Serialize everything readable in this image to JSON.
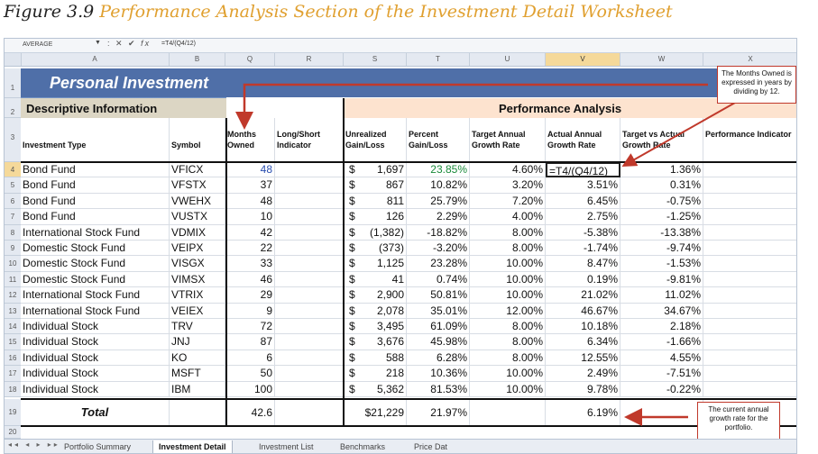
{
  "caption": {
    "figure": "Figure 3.9",
    "title": "Performance Analysis Section of the Investment Detail Worksheet"
  },
  "formula_bar": {
    "name_box": "AVERAGE",
    "formula": "=T4/(Q4/12)"
  },
  "columns": [
    "A",
    "B",
    "Q",
    "R",
    "S",
    "T",
    "U",
    "V",
    "W",
    "X"
  ],
  "row_numbers": [
    "1",
    "2",
    "3",
    "4",
    "5",
    "6",
    "7",
    "8",
    "9",
    "10",
    "11",
    "12",
    "13",
    "14",
    "15",
    "16",
    "17",
    "18",
    "19",
    "20"
  ],
  "title": "Personal Investment",
  "sections": {
    "descriptive": "Descriptive Information",
    "performance": "Performance Analysis"
  },
  "headers": {
    "investment_type": "Investment Type",
    "symbol": "Symbol",
    "months_owned": "Months Owned",
    "long_short": "Long/Short Indicator",
    "unrealized": "Unrealized Gain/Loss",
    "percent": "Percent Gain/Loss",
    "target": "Target Annual Growth Rate",
    "actual": "Actual Annual Growth Rate",
    "target_vs_actual": "Target vs Actual Growth Rate",
    "performance": "Performance Indicator"
  },
  "rows": [
    {
      "type": "Bond Fund",
      "symbol": "VFICX",
      "months": "48",
      "gl": "1,697",
      "pct": "23.85%",
      "target": "4.60%",
      "actual": "=T4/(Q4/12)",
      "tva": "1.36%"
    },
    {
      "type": "Bond Fund",
      "symbol": "VFSTX",
      "months": "37",
      "gl": "867",
      "pct": "10.82%",
      "target": "3.20%",
      "actual": "3.51%",
      "tva": "0.31%"
    },
    {
      "type": "Bond Fund",
      "symbol": "VWEHX",
      "months": "48",
      "gl": "811",
      "pct": "25.79%",
      "target": "7.20%",
      "actual": "6.45%",
      "tva": "-0.75%"
    },
    {
      "type": "Bond Fund",
      "symbol": "VUSTX",
      "months": "10",
      "gl": "126",
      "pct": "2.29%",
      "target": "4.00%",
      "actual": "2.75%",
      "tva": "-1.25%"
    },
    {
      "type": "International Stock Fund",
      "symbol": "VDMIX",
      "months": "42",
      "gl": "(1,382)",
      "pct": "-18.82%",
      "target": "8.00%",
      "actual": "-5.38%",
      "tva": "-13.38%"
    },
    {
      "type": "Domestic Stock Fund",
      "symbol": "VEIPX",
      "months": "22",
      "gl": "(373)",
      "pct": "-3.20%",
      "target": "8.00%",
      "actual": "-1.74%",
      "tva": "-9.74%"
    },
    {
      "type": "Domestic Stock Fund",
      "symbol": "VISGX",
      "months": "33",
      "gl": "1,125",
      "pct": "23.28%",
      "target": "10.00%",
      "actual": "8.47%",
      "tva": "-1.53%"
    },
    {
      "type": "Domestic Stock Fund",
      "symbol": "VIMSX",
      "months": "46",
      "gl": "41",
      "pct": "0.74%",
      "target": "10.00%",
      "actual": "0.19%",
      "tva": "-9.81%"
    },
    {
      "type": "International Stock Fund",
      "symbol": "VTRIX",
      "months": "29",
      "gl": "2,900",
      "pct": "50.81%",
      "target": "10.00%",
      "actual": "21.02%",
      "tva": "11.02%"
    },
    {
      "type": "International Stock Fund",
      "symbol": "VEIEX",
      "months": "9",
      "gl": "2,078",
      "pct": "35.01%",
      "target": "12.00%",
      "actual": "46.67%",
      "tva": "34.67%"
    },
    {
      "type": "Individual Stock",
      "symbol": "TRV",
      "months": "72",
      "gl": "3,495",
      "pct": "61.09%",
      "target": "8.00%",
      "actual": "10.18%",
      "tva": "2.18%"
    },
    {
      "type": "Individual Stock",
      "symbol": "JNJ",
      "months": "87",
      "gl": "3,676",
      "pct": "45.98%",
      "target": "8.00%",
      "actual": "6.34%",
      "tva": "-1.66%"
    },
    {
      "type": "Individual Stock",
      "symbol": "KO",
      "months": "6",
      "gl": "588",
      "pct": "6.28%",
      "target": "8.00%",
      "actual": "12.55%",
      "tva": "4.55%"
    },
    {
      "type": "Individual Stock",
      "symbol": "MSFT",
      "months": "50",
      "gl": "218",
      "pct": "10.36%",
      "target": "10.00%",
      "actual": "2.49%",
      "tva": "-7.51%"
    },
    {
      "type": "Individual Stock",
      "symbol": "IBM",
      "months": "100",
      "gl": "5,362",
      "pct": "81.53%",
      "target": "10.00%",
      "actual": "9.78%",
      "tva": "-0.22%"
    }
  ],
  "dollar_sign": "$",
  "total": {
    "label": "Total",
    "months": "42.6",
    "gl": "$21,229",
    "pct": "21.97%",
    "actual": "6.19%"
  },
  "callouts": {
    "months_owned": "The Months Owned is expressed in years by dividing by 12.",
    "current_rate": "The current annual growth rate for the portfolio."
  },
  "tabs": [
    "Portfolio Summary",
    "Investment Detail",
    "Investment List",
    "Benchmarks",
    "Price Dat"
  ],
  "active_tab": "Investment Detail",
  "colors": {
    "title_band": "#4f6fa8",
    "desc_band": "#dcd6c4",
    "perf_band": "#fde3cf",
    "arrow": "#c0392b",
    "caption_title": "#e0a030"
  }
}
